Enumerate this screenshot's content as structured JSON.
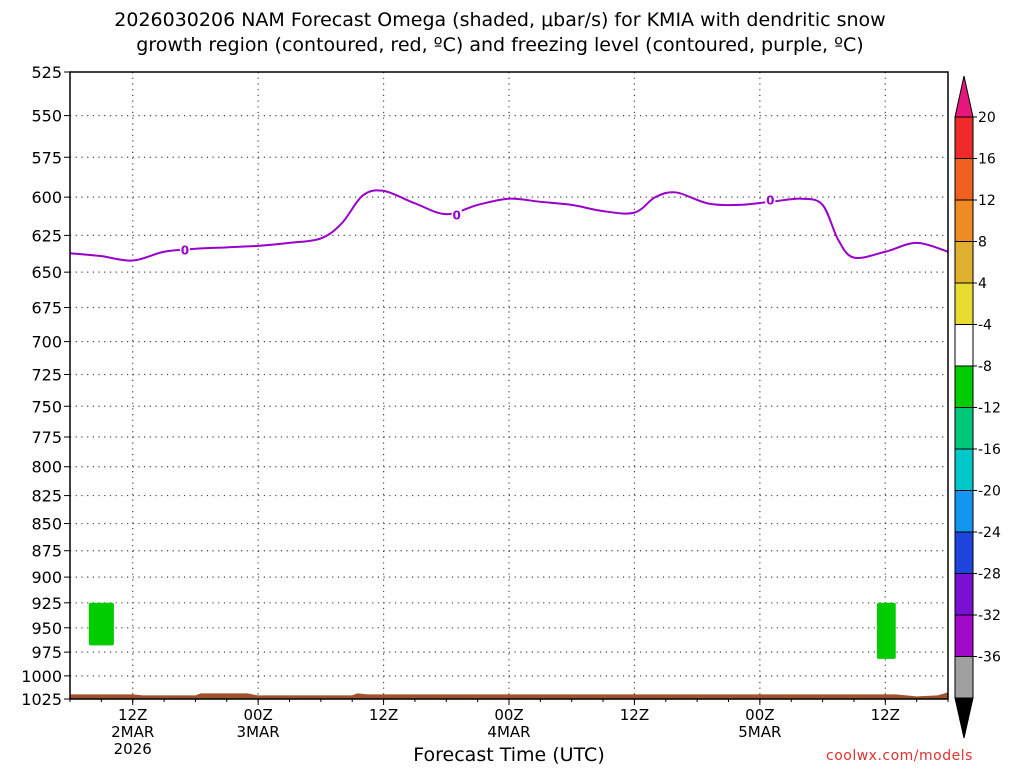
{
  "title": {
    "line1": "2026030206 NAM Forecast Omega (shaded, μbar/s) for KMIA with dendritic snow",
    "line2": "growth region (contoured, red, ºC) and freezing level (contoured, purple, ºC)"
  },
  "credit": "coolwx.com/models",
  "chart_data": {
    "type": "time-height",
    "title": "2026030206 NAM Forecast Omega (shaded, μbar/s) for KMIA with dendritic snow growth region (contoured, red, ºC) and freezing level (contoured, purple, ºC)",
    "xlabel": "Forecast Time (UTC)",
    "ylabel": "",
    "x_range_hours_from_init": [
      0,
      84
    ],
    "y_axis": {
      "unit": "hPa",
      "reversed": true,
      "ylim": [
        1025,
        525
      ],
      "ticks": [
        525,
        550,
        575,
        600,
        625,
        650,
        675,
        700,
        725,
        750,
        775,
        800,
        825,
        850,
        875,
        900,
        925,
        950,
        975,
        1000,
        1025
      ]
    },
    "x_ticks": [
      {
        "hour": 6,
        "label": "12Z",
        "sub1": "2MAR",
        "sub2": "2026"
      },
      {
        "hour": 18,
        "label": "00Z",
        "sub1": "3MAR",
        "sub2": ""
      },
      {
        "hour": 30,
        "label": "12Z",
        "sub1": "",
        "sub2": ""
      },
      {
        "hour": 42,
        "label": "00Z",
        "sub1": "4MAR",
        "sub2": ""
      },
      {
        "hour": 54,
        "label": "12Z",
        "sub1": "",
        "sub2": ""
      },
      {
        "hour": 66,
        "label": "00Z",
        "sub1": "5MAR",
        "sub2": ""
      },
      {
        "hour": 78,
        "label": "12Z",
        "sub1": "",
        "sub2": ""
      }
    ],
    "grid": true,
    "freezing_level": {
      "name": "freezing level",
      "color": "#9900cc",
      "label": "0",
      "points": [
        [
          0,
          637
        ],
        [
          3,
          639
        ],
        [
          6,
          642
        ],
        [
          9,
          636
        ],
        [
          12,
          634
        ],
        [
          15,
          633
        ],
        [
          18,
          632
        ],
        [
          21,
          630
        ],
        [
          24,
          627
        ],
        [
          26,
          617
        ],
        [
          28,
          599
        ],
        [
          30,
          596
        ],
        [
          33,
          604
        ],
        [
          36,
          611
        ],
        [
          39,
          605
        ],
        [
          42,
          601
        ],
        [
          45,
          603
        ],
        [
          48,
          605
        ],
        [
          51,
          609
        ],
        [
          54,
          610
        ],
        [
          56,
          600
        ],
        [
          58,
          597
        ],
        [
          61,
          604
        ],
        [
          64,
          605
        ],
        [
          67,
          603
        ],
        [
          70,
          601
        ],
        [
          72,
          605
        ],
        [
          73.5,
          628
        ],
        [
          75,
          640
        ],
        [
          78,
          636
        ],
        [
          81,
          630
        ],
        [
          84,
          636
        ]
      ],
      "label_points": [
        [
          11,
          635
        ],
        [
          37,
          612
        ],
        [
          67,
          602
        ]
      ]
    },
    "omega_shading": [
      {
        "value_range": [
          -8,
          -4
        ],
        "color": "#00cc00",
        "hours": [
          1.8,
          4.2
        ],
        "pressure": [
          925,
          968
        ]
      },
      {
        "value_range": [
          -8,
          -4
        ],
        "color": "#00cc00",
        "hours": [
          77.2,
          79.0
        ],
        "pressure": [
          925,
          982
        ]
      }
    ],
    "terrain": {
      "color": "#a0522d",
      "top_pressure": 1020
    },
    "colorbar": {
      "labels": [
        "20",
        "16",
        "12",
        "8",
        "4",
        "-4",
        "-8",
        "-12",
        "-16",
        "-20",
        "-24",
        "-28",
        "-32",
        "-36"
      ],
      "colors": [
        "#e8177d",
        "#ee2a2a",
        "#f06020",
        "#f08a22",
        "#e0b030",
        "#e8dc30",
        "#ffffff",
        "#00cc00",
        "#00c878",
        "#00c8c8",
        "#1496f0",
        "#1e46dc",
        "#7a10d4",
        "#a00ac8",
        "#a0a0a0",
        "#000000"
      ]
    }
  }
}
